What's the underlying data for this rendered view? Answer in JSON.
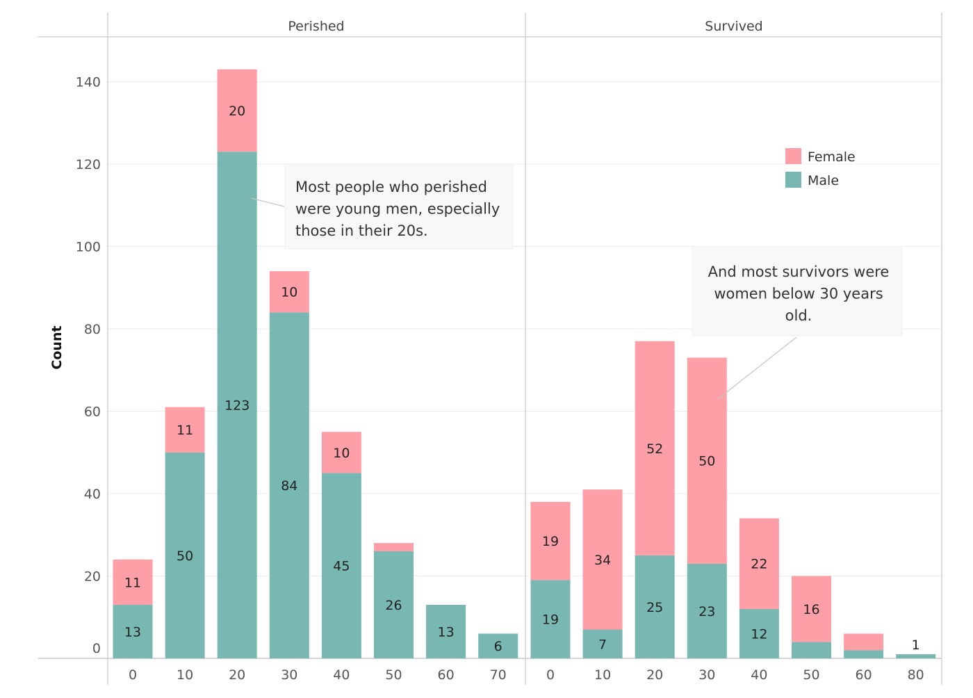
{
  "chart_data": {
    "type": "bar",
    "stacked": true,
    "ylabel": "Count",
    "ylim": [
      0,
      155
    ],
    "yticks": [
      0,
      20,
      40,
      60,
      80,
      100,
      120,
      140
    ],
    "grid": true,
    "legend": {
      "placement": "top-right",
      "entries": [
        {
          "name": "Female",
          "color": "#fe9ea6"
        },
        {
          "name": "Male",
          "color": "#78b7b2"
        }
      ]
    },
    "panels": [
      {
        "title": "Perished",
        "categories": [
          "0",
          "10",
          "20",
          "30",
          "40",
          "50",
          "60",
          "70"
        ],
        "series": [
          {
            "name": "Male",
            "values": [
              13,
              50,
              123,
              84,
              45,
              26,
              13,
              6
            ],
            "labels": [
              "13",
              "50",
              "123",
              "84",
              "45",
              "26",
              "13",
              "6"
            ]
          },
          {
            "name": "Female",
            "values": [
              11,
              11,
              20,
              10,
              10,
              2,
              0,
              0
            ],
            "labels": [
              "11",
              "11",
              "20",
              "10",
              "10",
              "",
              "",
              ""
            ]
          }
        ]
      },
      {
        "title": "Survived",
        "categories": [
          "0",
          "10",
          "20",
          "30",
          "40",
          "50",
          "60",
          "80"
        ],
        "series": [
          {
            "name": "Male",
            "values": [
              19,
              7,
              25,
              23,
              12,
              4,
              2,
              1
            ],
            "labels": [
              "19",
              "7",
              "25",
              "23",
              "12",
              "",
              "",
              "1"
            ]
          },
          {
            "name": "Female",
            "values": [
              19,
              34,
              52,
              50,
              22,
              16,
              4,
              0
            ],
            "labels": [
              "19",
              "34",
              "52",
              "50",
              "22",
              "16",
              "",
              ""
            ]
          }
        ]
      }
    ],
    "annotations": [
      {
        "panel": 0,
        "lines": [
          "Most people who perished",
          "were young men, especially",
          "those in their 20s."
        ],
        "align": "left"
      },
      {
        "panel": 1,
        "lines": [
          "And most survivors were",
          "women below 30 years",
          "old."
        ],
        "align": "center"
      }
    ]
  }
}
